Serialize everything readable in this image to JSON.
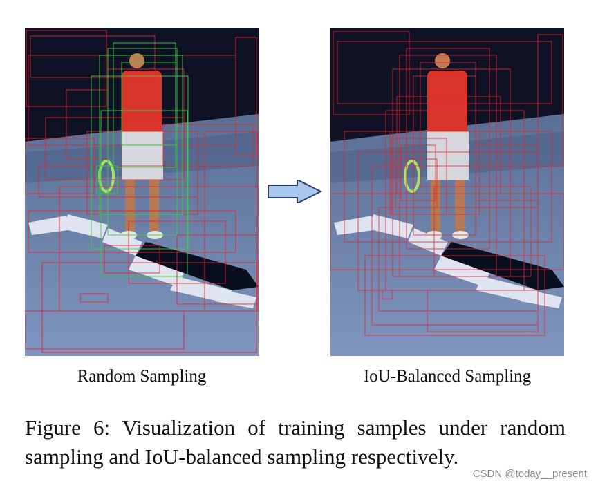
{
  "figure": {
    "captions": {
      "left": "Random Sampling",
      "right": "IoU-Balanced Sampling"
    },
    "figure_caption": {
      "line1": "Figure 6:  Visualization of training samples under random",
      "line2": "sampling and IoU-balanced sampling respectively."
    }
  },
  "colors": {
    "box_red": "#e8232a",
    "box_green": "#34d23a",
    "arrow_fill": "#a9c7ef",
    "arrow_stroke": "#2c3e66"
  },
  "watermark": "CSDN @today__present"
}
